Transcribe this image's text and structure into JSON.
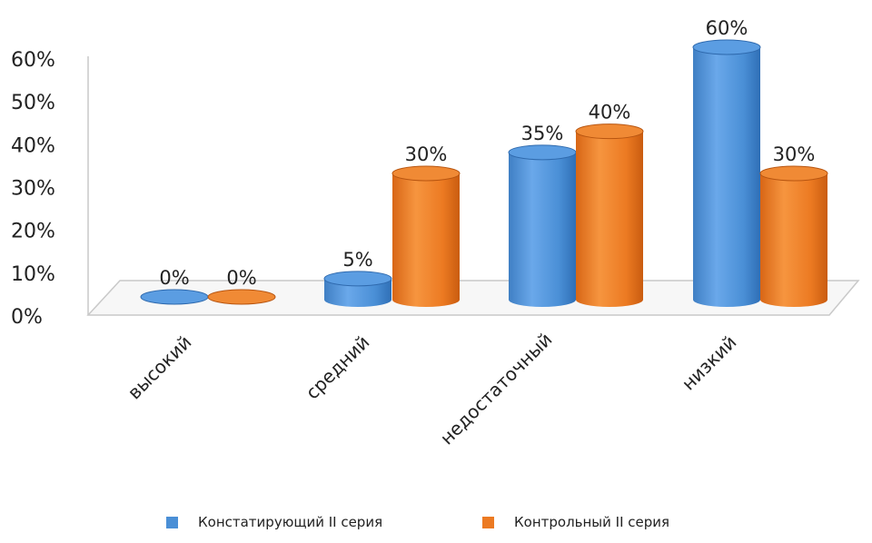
{
  "chart_data": {
    "type": "bar",
    "style": "3d-cylinder",
    "categories": [
      "высокий",
      "средний",
      "недостаточный",
      "низкий"
    ],
    "series": [
      {
        "name": "Констатирующий  II серия",
        "values": [
          0,
          5,
          35,
          60
        ],
        "labels": [
          "0%",
          "5%",
          "35%",
          "60%"
        ],
        "color": "#4a8fd6"
      },
      {
        "name": "Контрольный    II серия",
        "values": [
          0,
          30,
          40,
          30
        ],
        "labels": [
          "0%",
          "30%",
          "40%",
          "30%"
        ],
        "color": "#ec7a22"
      }
    ],
    "yticks": [
      "0%",
      "10%",
      "20%",
      "30%",
      "40%",
      "50%",
      "60%"
    ],
    "ylim": [
      0,
      60
    ],
    "legend_position": "bottom",
    "grid": false
  }
}
